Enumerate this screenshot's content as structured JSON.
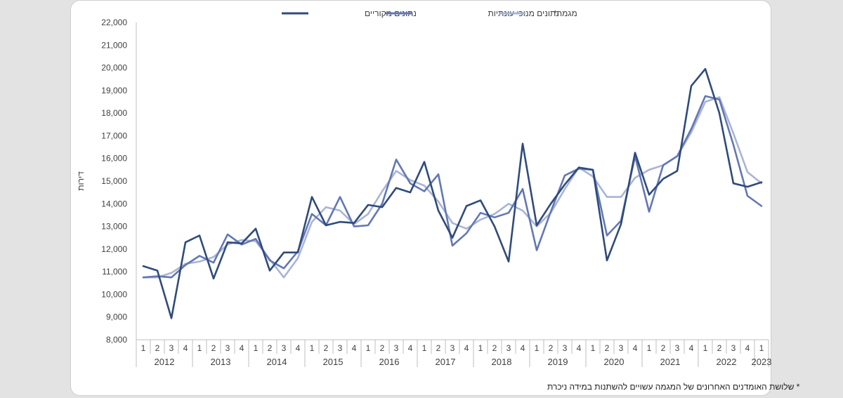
{
  "chart_data": {
    "type": "line",
    "ylabel": "דירות",
    "ylim": [
      8000,
      22000
    ],
    "y_ticks": [
      "8,000",
      "9,000",
      "10,000",
      "11,000",
      "12,000",
      "13,000",
      "14,000",
      "15,000",
      "16,000",
      "17,000",
      "18,000",
      "19,000",
      "20,000",
      "21,000",
      "22,000"
    ],
    "years": [
      "2012",
      "2013",
      "2014",
      "2015",
      "2016",
      "2017",
      "2018",
      "2019",
      "2020",
      "2021",
      "2022",
      "2023"
    ],
    "quarter_labels": [
      "1",
      "2",
      "3",
      "4",
      "1",
      "2",
      "3",
      "4",
      "1",
      "2",
      "3",
      "4",
      "1",
      "2",
      "3",
      "4",
      "1",
      "2",
      "3",
      "4",
      "1",
      "2",
      "3",
      "4",
      "1",
      "2",
      "3",
      "4",
      "1",
      "2",
      "3",
      "4",
      "1",
      "2",
      "3",
      "4",
      "1",
      "2",
      "3",
      "4",
      "1",
      "2",
      "3",
      "4",
      "1"
    ],
    "series": [
      {
        "name": "נתונים מקוריים",
        "color": "#2f4b7c",
        "values": [
          11250,
          11050,
          8950,
          12300,
          12600,
          10700,
          12300,
          12250,
          12900,
          11050,
          11850,
          11850,
          14300,
          13050,
          13200,
          13150,
          13950,
          13850,
          14700,
          14500,
          15850,
          13700,
          12500,
          13900,
          14150,
          13000,
          11450,
          16650,
          13050,
          14000,
          14850,
          15600,
          15500,
          11500,
          13100,
          16250,
          14400,
          15100,
          15450,
          19200,
          19950,
          18000,
          14900,
          14750,
          14950
        ]
      },
      {
        "name": "נתונים מנוכי עונתיות",
        "color": "#6377b4",
        "values": [
          10750,
          10800,
          10750,
          11300,
          11700,
          11400,
          12650,
          12200,
          12450,
          11500,
          11150,
          11900,
          13550,
          13050,
          14300,
          13000,
          13050,
          14000,
          15950,
          14900,
          14550,
          15300,
          12150,
          12700,
          13600,
          13400,
          13600,
          14650,
          11950,
          13650,
          15250,
          15550,
          15500,
          12600,
          13250,
          16100,
          13650,
          15700,
          16100,
          17300,
          18750,
          18600,
          16600,
          14350,
          13900
        ]
      },
      {
        "name": "מגמה*",
        "color": "#a9b4d6",
        "values": [
          10750,
          10750,
          10950,
          11350,
          11450,
          11650,
          12200,
          12400,
          12350,
          11550,
          10750,
          11600,
          13200,
          13850,
          13700,
          13100,
          13550,
          14550,
          15450,
          15050,
          14800,
          14100,
          13150,
          12900,
          13300,
          13550,
          14000,
          13700,
          13000,
          13600,
          14650,
          15600,
          15200,
          14300,
          14300,
          15150,
          15500,
          15700,
          16100,
          17150,
          18500,
          18700,
          17100,
          15400,
          14900
        ]
      }
    ]
  },
  "footnote": "* שלושת האומדנים האחרונים של המגמה עשויים להשתנות במידה ניכרת"
}
